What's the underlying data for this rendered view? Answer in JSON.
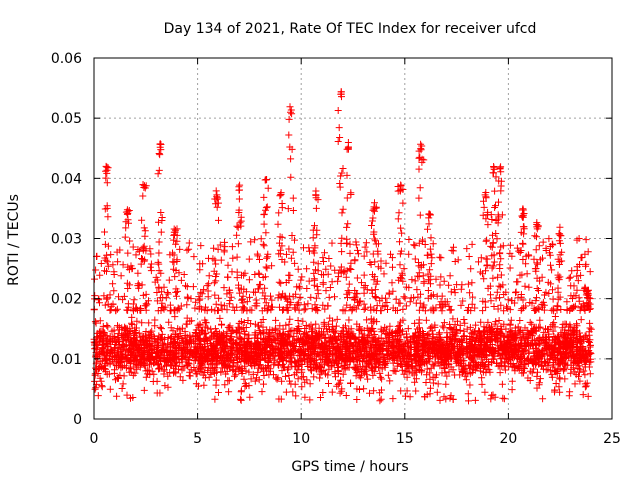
{
  "chart_data": {
    "type": "scatter",
    "title": "Day 134 of 2021, Rate Of TEC Index for receiver ufcd",
    "xlabel": "GPS time / hours",
    "ylabel": "ROTI / TECUs",
    "xlim": [
      0,
      25
    ],
    "ylim": [
      0,
      0.06
    ],
    "x_ticks": [
      "0",
      "5",
      "10",
      "15",
      "20",
      "25"
    ],
    "y_ticks": [
      "0",
      "0.01",
      "0.02",
      "0.03",
      "0.04",
      "0.05",
      "0.06"
    ],
    "grid": true,
    "marker": "+",
    "color": "#ff0000",
    "data_range_hours": [
      0,
      24
    ],
    "series": [
      {
        "name": "ROTI",
        "baseline_band": [
          0.005,
          0.018
        ],
        "notable_peaks": [
          {
            "x": 0.6,
            "y": 0.042
          },
          {
            "x": 1.6,
            "y": 0.035
          },
          {
            "x": 2.4,
            "y": 0.039
          },
          {
            "x": 3.2,
            "y": 0.046
          },
          {
            "x": 3.9,
            "y": 0.032
          },
          {
            "x": 5.9,
            "y": 0.038
          },
          {
            "x": 7.0,
            "y": 0.039
          },
          {
            "x": 8.3,
            "y": 0.04
          },
          {
            "x": 9.0,
            "y": 0.038
          },
          {
            "x": 9.5,
            "y": 0.052
          },
          {
            "x": 10.7,
            "y": 0.038
          },
          {
            "x": 11.9,
            "y": 0.055
          },
          {
            "x": 12.3,
            "y": 0.046
          },
          {
            "x": 13.5,
            "y": 0.036
          },
          {
            "x": 14.8,
            "y": 0.039
          },
          {
            "x": 15.8,
            "y": 0.046
          },
          {
            "x": 16.2,
            "y": 0.035
          },
          {
            "x": 18.9,
            "y": 0.038
          },
          {
            "x": 19.3,
            "y": 0.042
          },
          {
            "x": 19.6,
            "y": 0.042
          },
          {
            "x": 20.7,
            "y": 0.035
          },
          {
            "x": 21.4,
            "y": 0.033
          },
          {
            "x": 22.5,
            "y": 0.032
          },
          {
            "x": 23.8,
            "y": 0.022
          }
        ]
      }
    ]
  }
}
